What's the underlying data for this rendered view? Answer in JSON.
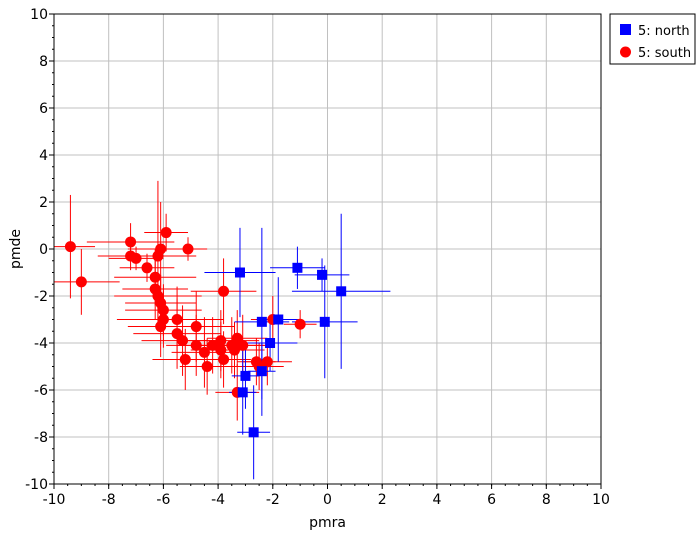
{
  "chart_data": {
    "type": "scatter",
    "title": "",
    "xlabel": "pmra",
    "ylabel": "pmde",
    "xlim": [
      -10,
      10
    ],
    "ylim": [
      -10,
      10
    ],
    "x_ticks": [
      -10,
      -8,
      -6,
      -4,
      -2,
      0,
      2,
      4,
      6,
      8,
      10
    ],
    "y_ticks": [
      -10,
      -8,
      -6,
      -4,
      -2,
      0,
      2,
      4,
      6,
      8,
      10
    ],
    "grid": true,
    "legend_position": "top-right outside",
    "series": [
      {
        "name": "5: north",
        "marker": "square",
        "color": "#0000ff",
        "points": [
          {
            "x": -3.2,
            "y": -1.0,
            "xerr": 1.3,
            "yerr": 1.9
          },
          {
            "x": -1.1,
            "y": -0.8,
            "xerr": 1.0,
            "yerr": 0.9
          },
          {
            "x": -0.2,
            "y": -1.1,
            "xerr": 1.0,
            "yerr": 0.7
          },
          {
            "x": 0.5,
            "y": -1.8,
            "xerr": 1.8,
            "yerr": 3.3
          },
          {
            "x": -2.4,
            "y": -3.1,
            "xerr": 1.0,
            "yerr": 4.0
          },
          {
            "x": -1.8,
            "y": -3.0,
            "xerr": 0.8,
            "yerr": 1.8
          },
          {
            "x": -0.1,
            "y": -3.1,
            "xerr": 1.2,
            "yerr": 2.4
          },
          {
            "x": -2.1,
            "y": -4.0,
            "xerr": 1.0,
            "yerr": 1.2
          },
          {
            "x": -3.0,
            "y": -5.4,
            "xerr": 0.5,
            "yerr": 1.4
          },
          {
            "x": -3.1,
            "y": -6.1,
            "xerr": 0.5,
            "yerr": 1.8
          },
          {
            "x": -2.7,
            "y": -7.8,
            "xerr": 0.6,
            "yerr": 2.0
          },
          {
            "x": -2.4,
            "y": -5.2,
            "xerr": 0.5,
            "yerr": 1.2
          }
        ]
      },
      {
        "name": "5: south",
        "marker": "circle",
        "color": "#ff0000",
        "points": [
          {
            "x": -9.4,
            "y": 0.1,
            "xerr": 0.9,
            "yerr": 2.2
          },
          {
            "x": -9.0,
            "y": -1.4,
            "xerr": 1.4,
            "yerr": 1.4
          },
          {
            "x": -7.2,
            "y": 0.3,
            "xerr": 1.6,
            "yerr": 0.8
          },
          {
            "x": -7.2,
            "y": -0.3,
            "xerr": 1.2,
            "yerr": 0.6
          },
          {
            "x": -7.0,
            "y": -0.4,
            "xerr": 1.0,
            "yerr": 0.5
          },
          {
            "x": -6.6,
            "y": -0.8,
            "xerr": 1.0,
            "yerr": 0.6
          },
          {
            "x": -6.3,
            "y": -1.2,
            "xerr": 1.5,
            "yerr": 1.2
          },
          {
            "x": -6.3,
            "y": -1.7,
            "xerr": 1.2,
            "yerr": 1.3
          },
          {
            "x": -6.2,
            "y": -0.3,
            "xerr": 1.4,
            "yerr": 3.2
          },
          {
            "x": -6.1,
            "y": 0.0,
            "xerr": 1.2,
            "yerr": 2.0
          },
          {
            "x": -5.9,
            "y": 0.7,
            "xerr": 0.8,
            "yerr": 0.8
          },
          {
            "x": -5.1,
            "y": 0.0,
            "xerr": 0.7,
            "yerr": 0.5
          },
          {
            "x": -6.2,
            "y": -2.0,
            "xerr": 1.6,
            "yerr": 1.0
          },
          {
            "x": -6.1,
            "y": -2.3,
            "xerr": 1.3,
            "yerr": 1.2
          },
          {
            "x": -6.1,
            "y": -3.3,
            "xerr": 1.2,
            "yerr": 1.3
          },
          {
            "x": -6.0,
            "y": -2.6,
            "xerr": 1.4,
            "yerr": 1.1
          },
          {
            "x": -6.0,
            "y": -3.0,
            "xerr": 1.7,
            "yerr": 1.2
          },
          {
            "x": -5.5,
            "y": -3.0,
            "xerr": 1.7,
            "yerr": 1.4
          },
          {
            "x": -5.5,
            "y": -3.6,
            "xerr": 1.6,
            "yerr": 1.5
          },
          {
            "x": -5.3,
            "y": -3.9,
            "xerr": 1.5,
            "yerr": 1.5
          },
          {
            "x": -5.2,
            "y": -4.7,
            "xerr": 1.2,
            "yerr": 1.3
          },
          {
            "x": -4.8,
            "y": -3.3,
            "xerr": 1.4,
            "yerr": 1.5
          },
          {
            "x": -4.8,
            "y": -4.1,
            "xerr": 1.1,
            "yerr": 1.3
          },
          {
            "x": -4.5,
            "y": -4.4,
            "xerr": 1.2,
            "yerr": 1.5
          },
          {
            "x": -4.4,
            "y": -5.0,
            "xerr": 1.0,
            "yerr": 1.2
          },
          {
            "x": -4.2,
            "y": -4.1,
            "xerr": 1.3,
            "yerr": 1.2
          },
          {
            "x": -3.9,
            "y": -3.9,
            "xerr": 1.4,
            "yerr": 1.3
          },
          {
            "x": -3.9,
            "y": -4.3,
            "xerr": 1.1,
            "yerr": 1.2
          },
          {
            "x": -3.8,
            "y": -4.7,
            "xerr": 1.0,
            "yerr": 1.2
          },
          {
            "x": -3.8,
            "y": -1.8,
            "xerr": 1.2,
            "yerr": 1.4
          },
          {
            "x": -3.5,
            "y": -4.1,
            "xerr": 1.2,
            "yerr": 1.2
          },
          {
            "x": -3.4,
            "y": -4.3,
            "xerr": 1.1,
            "yerr": 1.2
          },
          {
            "x": -3.3,
            "y": -3.8,
            "xerr": 1.1,
            "yerr": 1.2
          },
          {
            "x": -3.3,
            "y": -6.1,
            "xerr": 0.8,
            "yerr": 1.2
          },
          {
            "x": -3.1,
            "y": -4.1,
            "xerr": 1.1,
            "yerr": 1.3
          },
          {
            "x": -2.6,
            "y": -4.8,
            "xerr": 0.7,
            "yerr": 1.0
          },
          {
            "x": -2.5,
            "y": -5.0,
            "xerr": 0.9,
            "yerr": 1.0
          },
          {
            "x": -2.2,
            "y": -4.8,
            "xerr": 0.9,
            "yerr": 1.0
          },
          {
            "x": -2.0,
            "y": -3.0,
            "xerr": 0.8,
            "yerr": 1.0
          },
          {
            "x": -1.0,
            "y": -3.2,
            "xerr": 0.6,
            "yerr": 0.6
          }
        ]
      }
    ]
  },
  "legend": {
    "items": [
      {
        "label": "5: north",
        "marker": "square",
        "color": "#0000ff"
      },
      {
        "label": "5: south",
        "marker": "circle",
        "color": "#ff0000"
      }
    ]
  }
}
